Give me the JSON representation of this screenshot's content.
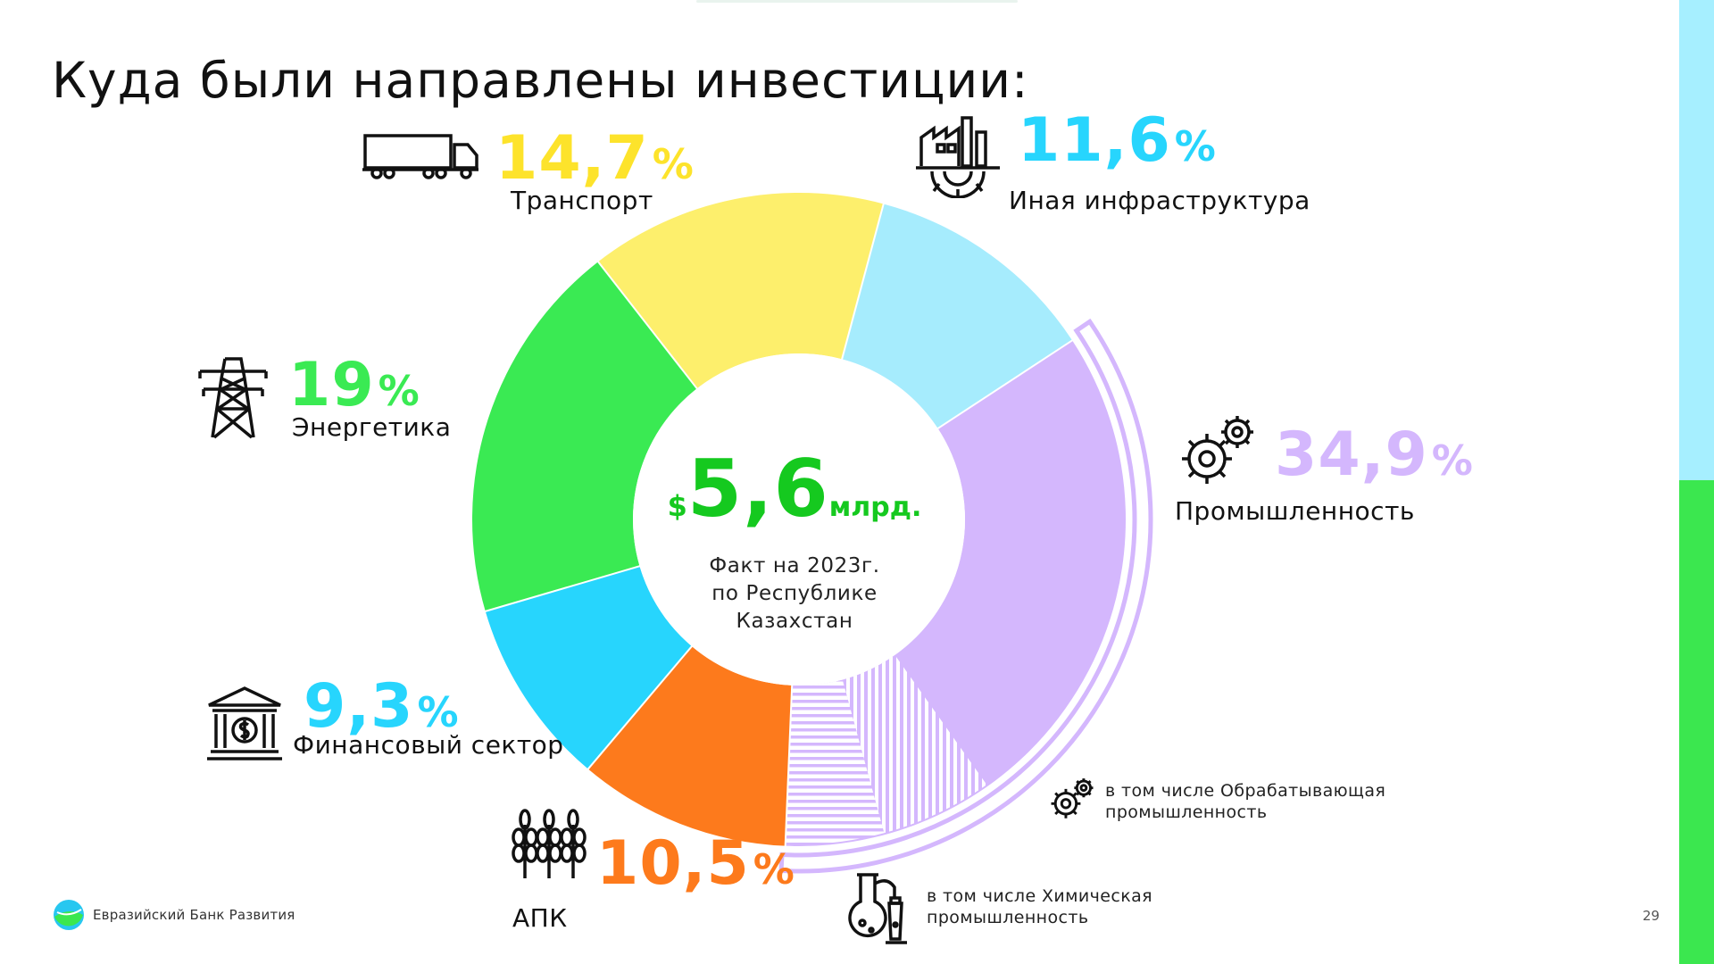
{
  "title": "Куда были направлены инвестиции:",
  "center": {
    "currency": "$",
    "amount": "5,6",
    "unit": "млрд.",
    "caption_lines": [
      "Факт на 2023г.",
      "по Республике",
      "Казахстан"
    ]
  },
  "chart_data": {
    "type": "pie",
    "variant": "donut",
    "total": "5,6 млрд.",
    "slices": [
      {
        "label": "Иная инфраструктура",
        "value": 11.6,
        "value_text": "11,6",
        "color": "#a6ecfd"
      },
      {
        "label": "Промышленность",
        "value": 34.9,
        "value_text": "34,9",
        "color": "#d4b7fd"
      },
      {
        "label": "АПК",
        "value": 10.5,
        "value_text": "10,5",
        "color": "#fd7a1c"
      },
      {
        "label": "Финансовый сектор",
        "value": 9.3,
        "value_text": "9,3",
        "color": "#27d5fd"
      },
      {
        "label": "Энергетика",
        "value": 19.0,
        "value_text": "19",
        "color": "#3aea53"
      },
      {
        "label": "Транспорт",
        "value": 14.7,
        "value_text": "14,7",
        "color": "#fdef6c"
      }
    ],
    "percent_sign": "%",
    "notes": {
      "manufacturing": "в том числе Обрабатывающая промышленность",
      "chemical": "в том числе Химическая промышленность"
    }
  },
  "icons": {
    "transport": "truck-icon",
    "infrastructure": "factory-gear-icon",
    "industry": "gears-icon",
    "energy": "power-tower-icon",
    "finance": "bank-icon",
    "agro": "wheat-icon",
    "manufacturing": "gears-icon",
    "chemical": "lab-flask-icon"
  },
  "footer": {
    "logo_text": "Евразийский Банк Развития",
    "page_number": "29"
  },
  "colors": {
    "accent_green": "#15c91f",
    "side_top": "#a6efff",
    "side_bottom": "#3be74f"
  }
}
